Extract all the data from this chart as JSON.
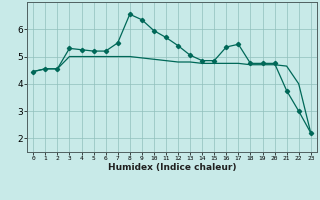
{
  "xlabel": "Humidex (Indice chaleur)",
  "background_color": "#c8eae8",
  "grid_color": "#90c0bc",
  "line_color": "#006858",
  "x_values": [
    0,
    1,
    2,
    3,
    4,
    5,
    6,
    7,
    8,
    9,
    10,
    11,
    12,
    13,
    14,
    15,
    16,
    17,
    18,
    19,
    20,
    21,
    22,
    23
  ],
  "line1_y": [
    4.45,
    4.55,
    4.55,
    5.3,
    5.25,
    5.2,
    5.2,
    5.5,
    6.55,
    6.35,
    5.95,
    5.7,
    5.4,
    5.05,
    4.85,
    4.85,
    5.35,
    5.45,
    4.75,
    4.75,
    4.75,
    3.75,
    3.0,
    2.2
  ],
  "line2_y": [
    4.45,
    4.55,
    4.55,
    5.0,
    5.0,
    5.0,
    5.0,
    5.0,
    5.0,
    4.95,
    4.9,
    4.85,
    4.8,
    4.8,
    4.75,
    4.75,
    4.75,
    4.75,
    4.7,
    4.7,
    4.7,
    4.65,
    4.0,
    2.2
  ],
  "ylim": [
    1.5,
    7.0
  ],
  "xlim": [
    -0.5,
    23.5
  ],
  "yticks": [
    2,
    3,
    4,
    5,
    6
  ],
  "xticks": [
    0,
    1,
    2,
    3,
    4,
    5,
    6,
    7,
    8,
    9,
    10,
    11,
    12,
    13,
    14,
    15,
    16,
    17,
    18,
    19,
    20,
    21,
    22,
    23
  ]
}
